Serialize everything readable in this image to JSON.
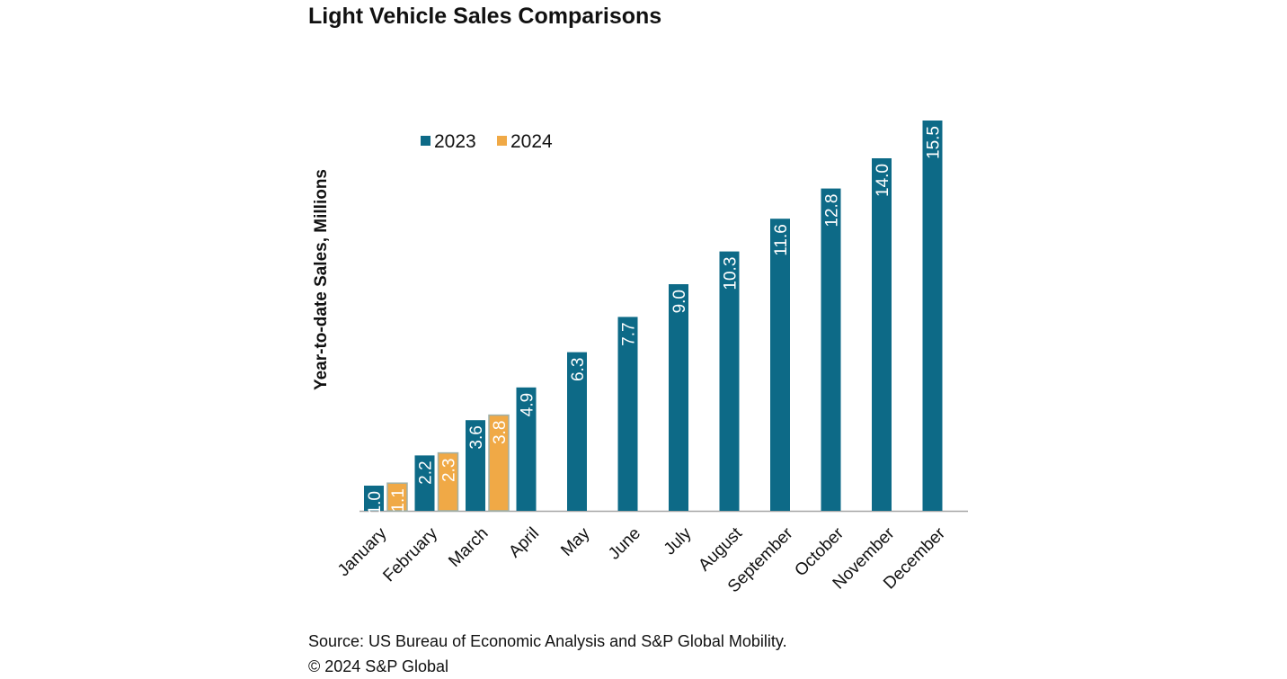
{
  "chart_data": {
    "type": "bar",
    "title": "Light Vehicle Sales Comparisons",
    "xlabel": "",
    "ylabel": "Year-to-date Sales, Millions",
    "ylim": [
      0,
      15.5
    ],
    "grid": false,
    "legend_position": "top-left",
    "categories": [
      "January",
      "February",
      "March",
      "April",
      "May",
      "June",
      "July",
      "August",
      "September",
      "October",
      "November",
      "December"
    ],
    "series": [
      {
        "name": "2023",
        "color": "#0d6a87",
        "values": [
          1.0,
          2.2,
          3.6,
          4.9,
          6.3,
          7.7,
          9.0,
          10.3,
          11.6,
          12.8,
          14.0,
          15.5
        ]
      },
      {
        "name": "2024",
        "color": "#f0a946",
        "values": [
          1.1,
          2.3,
          3.8,
          null,
          null,
          null,
          null,
          null,
          null,
          null,
          null,
          null
        ]
      }
    ]
  },
  "source": "Source: US Bureau of Economic Analysis and S&P Global Mobility.",
  "copyright": "© 2024 S&P Global"
}
